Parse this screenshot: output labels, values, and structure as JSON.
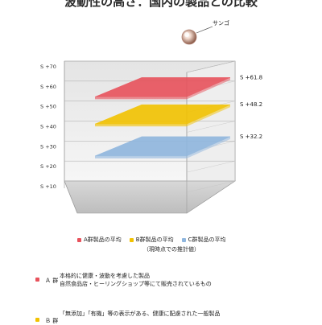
{
  "title": "波動性の高さ：国内の製品との比較",
  "colors": {
    "a": "#e8525c",
    "b": "#f2c200",
    "c": "#8fb6de",
    "sango": "#c89a8a"
  },
  "chart_data": {
    "type": "bar",
    "title": "波動性の高さ：国内の製品との比較",
    "y_ticks": [
      "S +10",
      "S +20",
      "S +30",
      "S +40",
      "S +50",
      "S +60",
      "S +70"
    ],
    "ylim": [
      10,
      70
    ],
    "series": [
      {
        "name": "A群製品の平均",
        "value": 61.8,
        "label": "S +61.8"
      },
      {
        "name": "B群製品の平均",
        "value": 48.2,
        "label": "S +48.2"
      },
      {
        "name": "C群製品の平均",
        "value": 32.2,
        "label": "S +32.2"
      }
    ],
    "annotation": "サンゴ",
    "legend_note": "（現時点での推計値）"
  },
  "descriptions": [
    {
      "group": "Ａ 群",
      "lines": [
        "本格的に健康・波動を考慮した製品",
        "自然食品店・ヒーリングショップ等にて販売されているもの"
      ]
    },
    {
      "group": "Ｂ 群",
      "lines": [
        "「無添加」「有機」等の表示がある、健康に配慮された一般製品"
      ]
    }
  ]
}
